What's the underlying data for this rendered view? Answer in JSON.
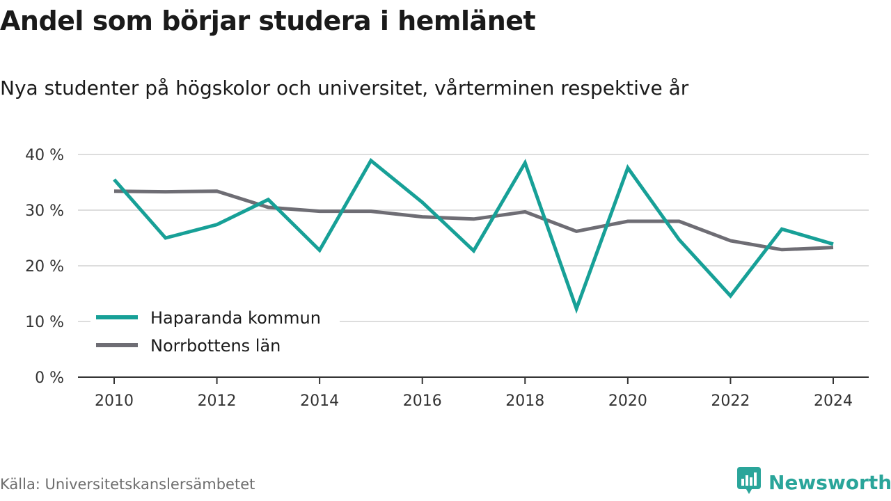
{
  "title": "Andel som börjar studera i hemlänet",
  "subtitle": "Nya studenter på högskolor och universitet, vårterminen respektive år",
  "source": "Källa: Universitetskanslersämbetet",
  "brand": {
    "name": "Newsworthy",
    "color": "#2aa59a",
    "icon": "bar-chart-speech-icon"
  },
  "chart_data": {
    "type": "line",
    "title": "Andel som börjar studera i hemlänet",
    "subtitle": "Nya studenter på högskolor och universitet, vårterminen respektive år",
    "xlabel": "",
    "ylabel": "",
    "x": [
      2010,
      2011,
      2012,
      2013,
      2014,
      2015,
      2016,
      2017,
      2018,
      2019,
      2020,
      2021,
      2022,
      2023,
      2024
    ],
    "xticks": [
      "2010",
      "2012",
      "2014",
      "2016",
      "2018",
      "2020",
      "2022",
      "2024"
    ],
    "yticks": [
      "0 %",
      "10 %",
      "20 %",
      "30 %",
      "40 %"
    ],
    "ylim": [
      0,
      40
    ],
    "grid": true,
    "legend_position": "bottom-left",
    "series": [
      {
        "name": "Haparanda kommun",
        "color": "#17a097",
        "values": [
          35.5,
          25.0,
          27.4,
          31.9,
          22.8,
          38.9,
          31.4,
          22.7,
          38.5,
          12.3,
          37.6,
          24.7,
          14.6,
          26.6,
          23.9
        ]
      },
      {
        "name": "Norrbottens län",
        "color": "#6e6d74",
        "values": [
          33.4,
          33.3,
          33.4,
          30.5,
          29.8,
          29.8,
          28.8,
          28.4,
          29.7,
          26.2,
          28.0,
          28.0,
          24.5,
          22.9,
          23.3
        ]
      }
    ]
  }
}
